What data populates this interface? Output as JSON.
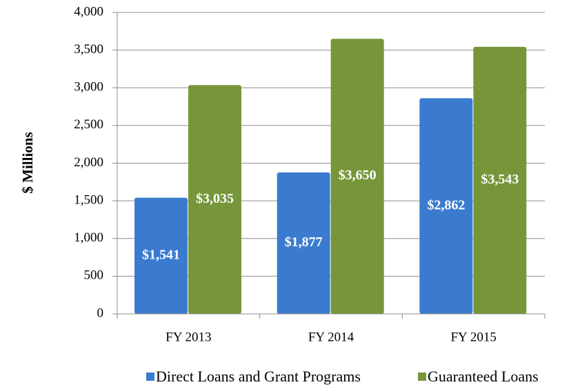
{
  "chart_data": {
    "type": "bar",
    "y_label": "$ Millions",
    "categories": [
      "FY 2013",
      "FY 2014",
      "FY 2015"
    ],
    "series": [
      {
        "name": "Direct Loans and Grant Programs",
        "color": "#3a7bd0",
        "values": [
          1541,
          1877,
          2862
        ],
        "value_labels": [
          "$1,541",
          "$1,877",
          "$2,862"
        ]
      },
      {
        "name": "Guaranteed Loans",
        "color": "#77963a",
        "values": [
          3035,
          3650,
          3543
        ],
        "value_labels": [
          "$3,035",
          "$3,650",
          "$3,543"
        ]
      }
    ],
    "ylim": [
      0,
      4000
    ],
    "yticks": [
      0,
      500,
      {
        "value": 1000,
        "label": "1,000"
      },
      {
        "value": 1500,
        "label": "1,500"
      },
      {
        "value": 2000,
        "label": "2,000"
      },
      {
        "value": 2500,
        "label": "2,500"
      },
      {
        "value": 3000,
        "label": "3,000"
      },
      {
        "value": 3500,
        "label": "3,500"
      },
      {
        "value": 4000,
        "label": "4,000"
      }
    ],
    "grid": true,
    "legend": "bottom"
  }
}
